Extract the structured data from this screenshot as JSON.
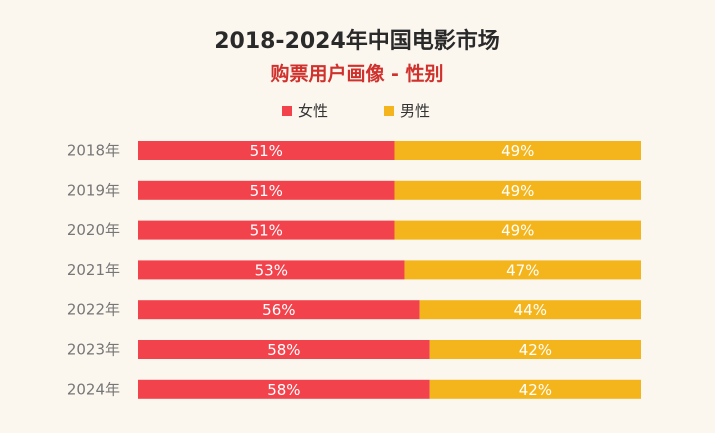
{
  "chart_data": {
    "type": "bar",
    "stacked": true,
    "orientation": "horizontal",
    "title": "2018-2024年中国电影市场",
    "subtitle": "购票用户画像 - 性别",
    "categories": [
      "2018年",
      "2019年",
      "2020年",
      "2021年",
      "2022年",
      "2023年",
      "2024年"
    ],
    "series": [
      {
        "name": "女性",
        "color": "#f2434d",
        "values": [
          51,
          51,
          51,
          53,
          56,
          58,
          58
        ]
      },
      {
        "name": "男性",
        "color": "#f3b51b",
        "values": [
          49,
          49,
          49,
          47,
          44,
          42,
          42
        ]
      }
    ],
    "value_suffix": "%",
    "xlim": [
      0,
      100
    ],
    "legend_position": "top-center",
    "grid": false
  }
}
